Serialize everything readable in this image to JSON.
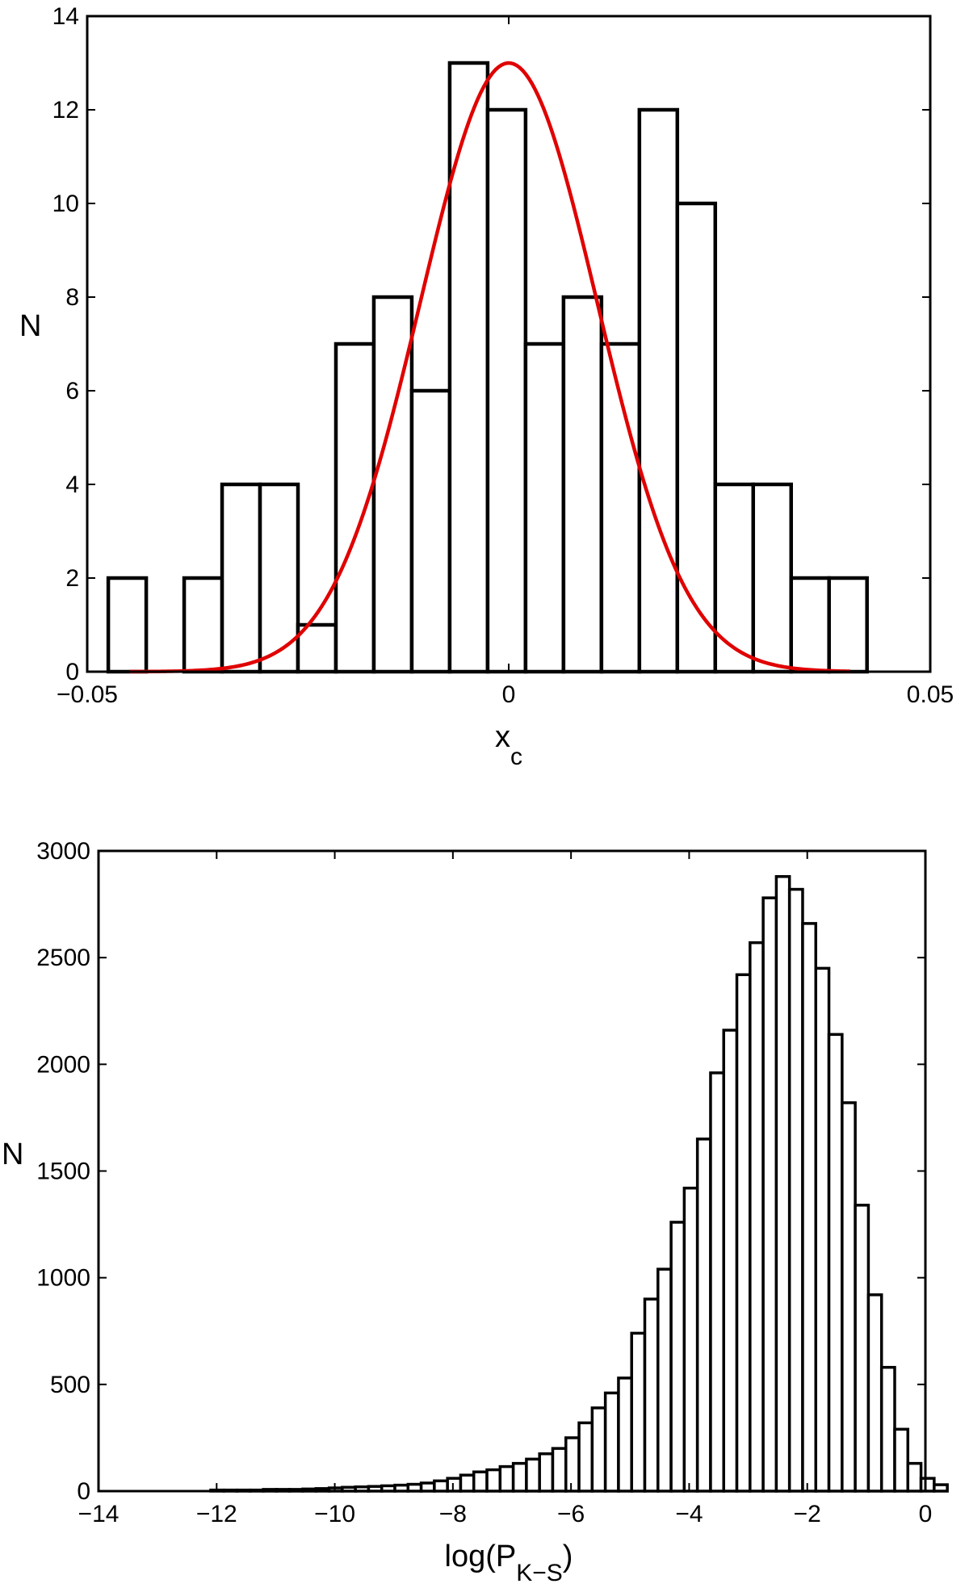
{
  "chart_data": [
    {
      "type": "bar",
      "subtype": "histogram",
      "xlabel_main": "x",
      "xlabel_sub": "c",
      "ylabel": "N",
      "xlim": [
        -0.05,
        0.05
      ],
      "ylim": [
        0,
        14
      ],
      "xticks": [
        -0.05,
        0,
        0.05
      ],
      "xtick_labels": [
        "−0.05",
        "0",
        "0.05"
      ],
      "yticks": [
        0,
        2,
        4,
        6,
        8,
        10,
        12,
        14
      ],
      "ytick_labels": [
        "0",
        "2",
        "4",
        "6",
        "8",
        "10",
        "12",
        "14"
      ],
      "grid": false,
      "bar_color": "#ffffff",
      "edge_color": "#000000",
      "bins": [
        {
          "x0": -0.0475,
          "x1": -0.043,
          "count": 2
        },
        {
          "x0": -0.043,
          "x1": -0.0385,
          "count": 0
        },
        {
          "x0": -0.0385,
          "x1": -0.034,
          "count": 2
        },
        {
          "x0": -0.034,
          "x1": -0.0295,
          "count": 4
        },
        {
          "x0": -0.0295,
          "x1": -0.025,
          "count": 4
        },
        {
          "x0": -0.025,
          "x1": -0.0205,
          "count": 1
        },
        {
          "x0": -0.0205,
          "x1": -0.016,
          "count": 7
        },
        {
          "x0": -0.016,
          "x1": -0.0115,
          "count": 8
        },
        {
          "x0": -0.0115,
          "x1": -0.007,
          "count": 6
        },
        {
          "x0": -0.007,
          "x1": -0.0025,
          "count": 13
        },
        {
          "x0": -0.0025,
          "x1": 0.002,
          "count": 12
        },
        {
          "x0": 0.002,
          "x1": 0.0065,
          "count": 7
        },
        {
          "x0": 0.0065,
          "x1": 0.011,
          "count": 8
        },
        {
          "x0": 0.011,
          "x1": 0.0155,
          "count": 7
        },
        {
          "x0": 0.0155,
          "x1": 0.02,
          "count": 12
        },
        {
          "x0": 0.02,
          "x1": 0.0245,
          "count": 10
        },
        {
          "x0": 0.0245,
          "x1": 0.029,
          "count": 4
        },
        {
          "x0": 0.029,
          "x1": 0.0335,
          "count": 4
        },
        {
          "x0": 0.0335,
          "x1": 0.038,
          "count": 2
        },
        {
          "x0": 0.038,
          "x1": 0.0425,
          "count": 2
        }
      ],
      "fit_curve": {
        "type": "gaussian",
        "color": "#e00000",
        "amplitude": 13,
        "mean": 0,
        "sigma": 0.0105,
        "xrange": [
          -0.045,
          0.0405
        ]
      }
    },
    {
      "type": "bar",
      "subtype": "histogram",
      "xlabel_main": "log(P",
      "xlabel_sub": "K−S",
      "xlabel_end": ")",
      "ylabel": "N",
      "xlim": [
        -14,
        0
      ],
      "ylim": [
        0,
        3000
      ],
      "xticks": [
        -14,
        -12,
        -10,
        -8,
        -6,
        -4,
        -2,
        0
      ],
      "xtick_labels": [
        "−14",
        "−12",
        "−10",
        "−8",
        "−6",
        "−4",
        "−2",
        "0"
      ],
      "yticks": [
        0,
        500,
        1000,
        1500,
        2000,
        2500,
        3000
      ],
      "ytick_labels": [
        "0",
        "500",
        "1000",
        "1500",
        "2000",
        "2500",
        "3000"
      ],
      "grid": false,
      "bar_color": "#ffffff",
      "edge_color": "#000000",
      "bin_start": -12.1,
      "bin_width": 0.2227,
      "counts": [
        5,
        5,
        5,
        5,
        8,
        8,
        8,
        10,
        12,
        15,
        18,
        20,
        22,
        25,
        28,
        32,
        38,
        48,
        60,
        75,
        90,
        100,
        115,
        130,
        150,
        175,
        200,
        250,
        320,
        390,
        460,
        530,
        740,
        900,
        1040,
        1260,
        1420,
        1650,
        1960,
        2160,
        2420,
        2570,
        2780,
        2880,
        2820,
        2660,
        2450,
        2140,
        1820,
        1340,
        920,
        580,
        290,
        130,
        60,
        30
      ]
    }
  ]
}
